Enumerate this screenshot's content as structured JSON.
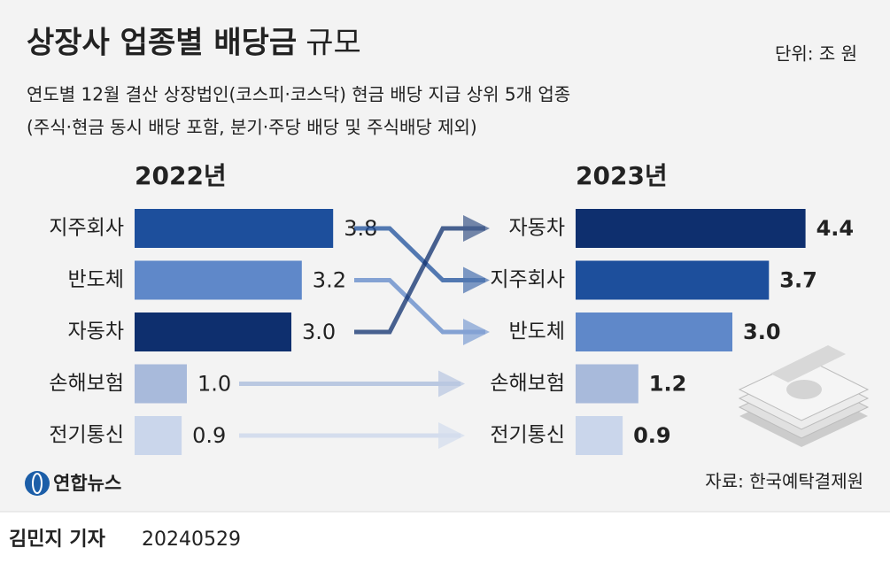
{
  "title": "상장사 업종별 배당금",
  "title_light": "규모",
  "unit": "단위: 조 원",
  "subtitle": [
    "연도별 12월 결산 상장법인(코스피·코스닥) 현금 배당 지급 상위 5개 업종",
    "(주식·현금 동시 배당 포함, 분기·주당 배당 및 주식배당 제외)"
  ],
  "chart_data": [
    {
      "type": "bar",
      "orientation": "horizontal",
      "title": "2022년",
      "categories": [
        "지주회사",
        "반도체",
        "자동차",
        "손해보험",
        "전기통신"
      ],
      "values": [
        3.8,
        3.2,
        3.0,
        1.0,
        0.9
      ],
      "value_labels": [
        "3.8",
        "3.2",
        "3.0",
        "1.0",
        "0.9"
      ],
      "colors": [
        "#1d4f9c",
        "#5f88c9",
        "#0e2f6e",
        "#a8badb",
        "#cad6eb"
      ]
    },
    {
      "type": "bar",
      "orientation": "horizontal",
      "title": "2023년",
      "categories": [
        "자동차",
        "지주회사",
        "반도체",
        "손해보험",
        "전기통신"
      ],
      "values": [
        4.4,
        3.7,
        3.0,
        1.2,
        0.9
      ],
      "value_labels": [
        "4.4",
        "3.7",
        "3.0",
        "1.2",
        "0.9"
      ],
      "colors": [
        "#0e2f6e",
        "#1d4f9c",
        "#5f88c9",
        "#a8badb",
        "#cad6eb"
      ]
    }
  ],
  "source": "자료: 한국예탁결제원",
  "logo": "연합뉴스",
  "byline": "김민지 기자",
  "date": "20240529"
}
